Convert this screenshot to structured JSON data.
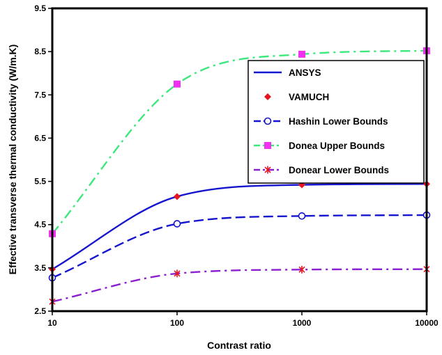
{
  "chart_data": {
    "type": "line",
    "title": "",
    "xlabel": "Contrast ratio",
    "ylabel": "Effective transverse thermal conductivity (W/m.K)",
    "x_scale": "log",
    "xlim": [
      10,
      10000
    ],
    "ylim": [
      2.5,
      9.5
    ],
    "x_ticks": [
      10,
      100,
      1000,
      10000
    ],
    "x_tick_labels": [
      "10",
      "100",
      "1000",
      "10000"
    ],
    "y_ticks": [
      2.5,
      3.5,
      4.5,
      5.5,
      6.5,
      7.5,
      8.5,
      9.5
    ],
    "y_tick_labels": [
      "2.5",
      "3.5",
      "4.5",
      "5.5",
      "6.5",
      "7.5",
      "8.5",
      "9.5"
    ],
    "grid": false,
    "legend_position": "right",
    "x": [
      10,
      100,
      1000,
      10000
    ],
    "series": [
      {
        "name": "ANSYS",
        "values": [
          3.47,
          5.15,
          5.42,
          5.44
        ],
        "color": "#1515D0",
        "dash": "solid",
        "marker": "none"
      },
      {
        "name": "VAMUCH",
        "values": [
          3.47,
          5.15,
          5.42,
          5.44
        ],
        "color": "#E8141E",
        "dash": "none",
        "marker": "diamond"
      },
      {
        "name": "Hashin Lower Bounds",
        "values": [
          3.27,
          4.52,
          4.7,
          4.72
        ],
        "color": "#1515D0",
        "dash": "dashed",
        "marker": "circle"
      },
      {
        "name": "Donea Upper Bounds",
        "values": [
          4.29,
          7.75,
          8.44,
          8.52
        ],
        "color": "#3CE87C",
        "dash": "dashdot",
        "marker": "square",
        "marker_color": "#F032F0"
      },
      {
        "name": "Donear Lower Bounds",
        "values": [
          2.72,
          3.37,
          3.46,
          3.47
        ],
        "color": "#8C1ED2",
        "dash": "dashdot",
        "marker": "star",
        "marker_color": "#E8141E"
      }
    ]
  }
}
